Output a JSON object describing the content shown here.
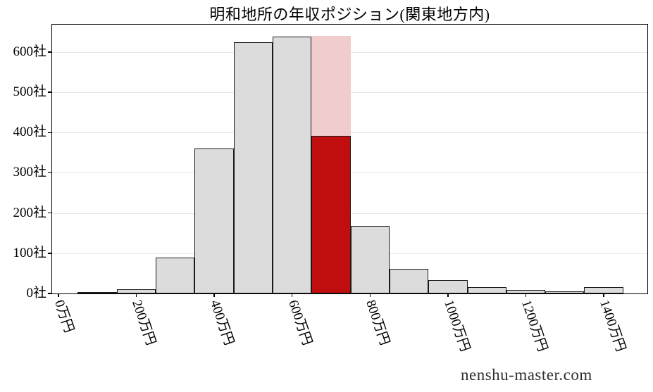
{
  "title": "明和地所の年収ポジション(関東地方内)",
  "watermark": "nenshu-master.com",
  "colors": {
    "bar_fill": "#dcdcdd",
    "bar_edge": "#1a1a1a",
    "highlight_fill": "#c00d0d",
    "highlight_band_fill": "#f1cccc",
    "grid": "#e7e7e7",
    "axis": "#000000",
    "watermark_text": "#2f2f2f"
  },
  "chart_data": {
    "type": "bar",
    "subtype": "histogram",
    "title": "明和地所の年収ポジション(関東地方内)",
    "xlabel": "",
    "ylabel": "",
    "x_unit": "万円",
    "y_unit": "社",
    "bin_edges": [
      50,
      150,
      250,
      350,
      450,
      550,
      650,
      750,
      850,
      950,
      1050,
      1150,
      1250,
      1350,
      1450
    ],
    "counts": [
      2,
      10,
      90,
      360,
      625,
      638,
      392,
      168,
      62,
      33,
      16,
      9,
      6,
      16
    ],
    "highlight": {
      "bin_index": 6,
      "bar_value": 392,
      "band_top": 640
    },
    "x_ticks": [
      {
        "value": 0,
        "label": "0万円"
      },
      {
        "value": 200,
        "label": "200万円"
      },
      {
        "value": 400,
        "label": "400万円"
      },
      {
        "value": 600,
        "label": "600万円"
      },
      {
        "value": 800,
        "label": "800万円"
      },
      {
        "value": 1000,
        "label": "1000万円"
      },
      {
        "value": 1200,
        "label": "1200万円"
      },
      {
        "value": 1400,
        "label": "1400万円"
      }
    ],
    "y_ticks": [
      {
        "value": 0,
        "label": "0社"
      },
      {
        "value": 100,
        "label": "100社"
      },
      {
        "value": 200,
        "label": "200社"
      },
      {
        "value": 300,
        "label": "300社"
      },
      {
        "value": 400,
        "label": "400社"
      },
      {
        "value": 500,
        "label": "500社"
      },
      {
        "value": 600,
        "label": "600社"
      }
    ],
    "x_range": [
      -16,
      1512
    ],
    "y_range": [
      0,
      668
    ],
    "grid": "horizontal",
    "legend": "none"
  }
}
